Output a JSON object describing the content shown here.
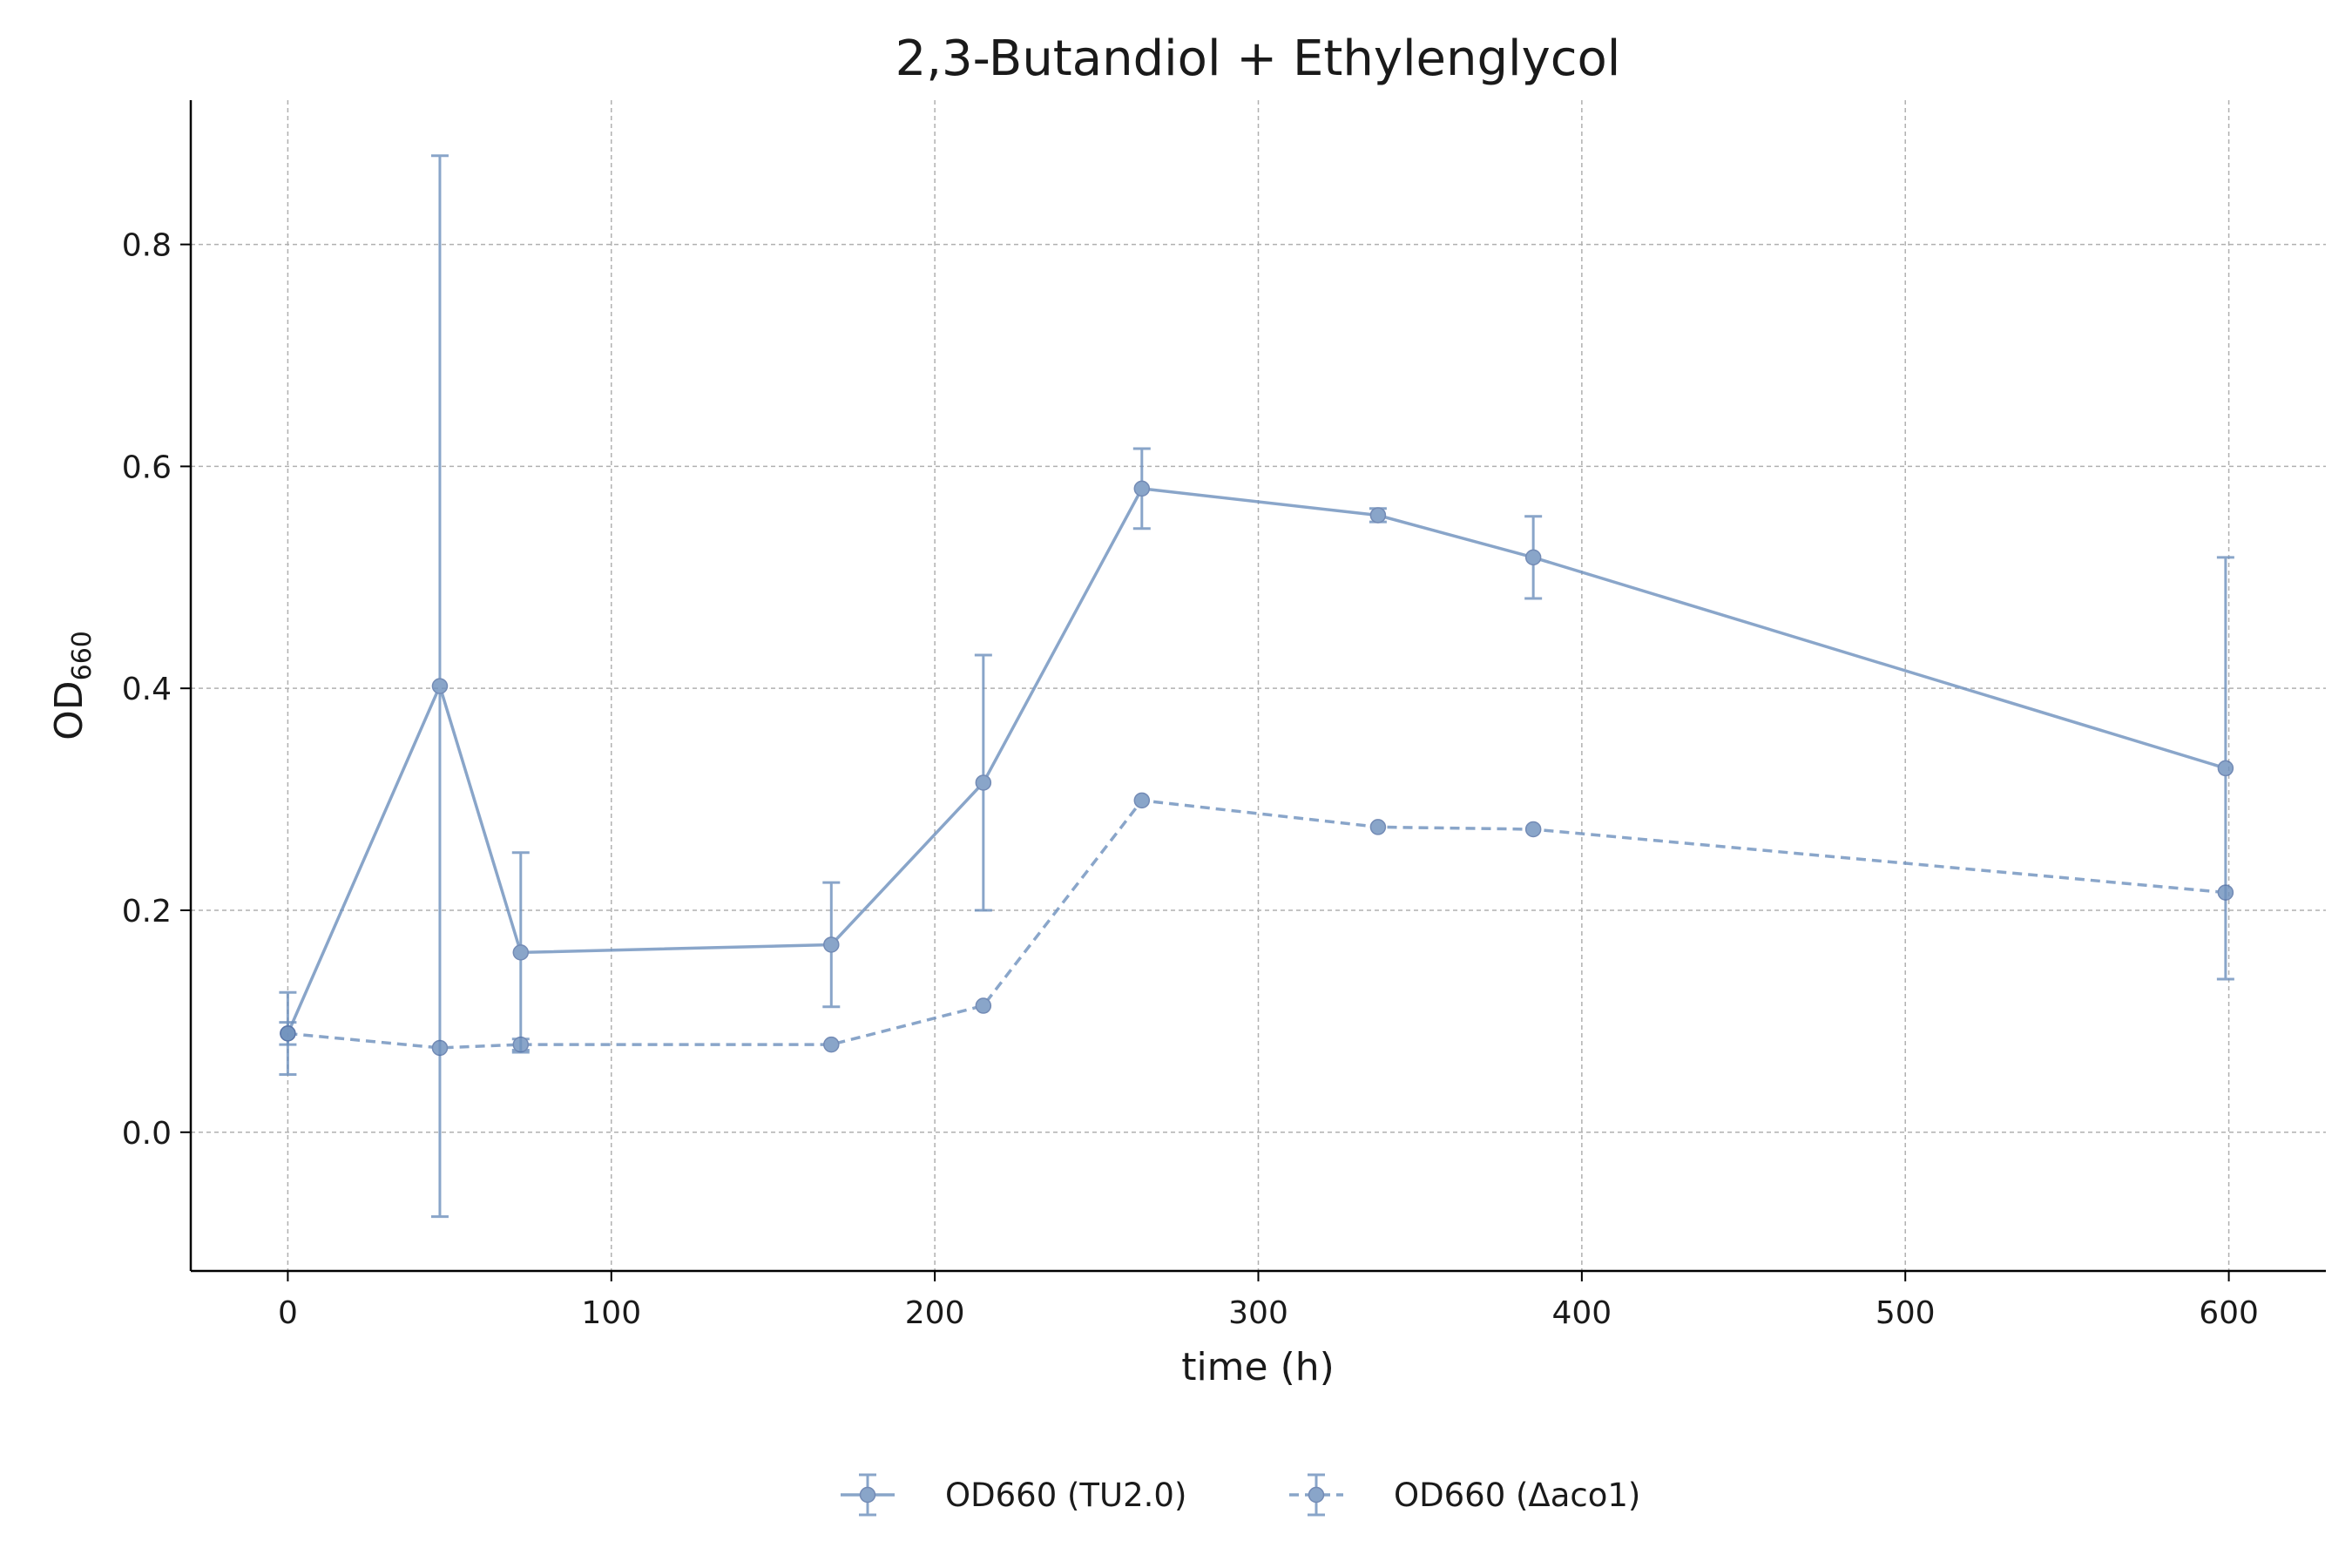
{
  "chart_data": {
    "type": "line",
    "title": "2,3-Butandiol + Ethylenglycol",
    "xlabel": "time (h)",
    "ylabel": {
      "main": "OD",
      "subscript": "660"
    },
    "xlim": [
      -30,
      630
    ],
    "ylim": [
      -0.125,
      0.93
    ],
    "xticks": [
      0,
      100,
      200,
      300,
      400,
      500,
      600
    ],
    "yticks": [
      0.0,
      0.2,
      0.4,
      0.6,
      0.8
    ],
    "ytick_labels": [
      "0.0",
      "0.2",
      "0.4",
      "0.6",
      "0.8"
    ],
    "grid": true,
    "legend_position": "bottom-center",
    "series": [
      {
        "name": "OD660 (TU2.0)",
        "color": "#7092be",
        "linestyle": "solid",
        "x": [
          0,
          47,
          72,
          168,
          215,
          264,
          337,
          385,
          599
        ],
        "y": [
          0.089,
          0.402,
          0.162,
          0.169,
          0.315,
          0.58,
          0.556,
          0.518,
          0.328
        ],
        "yerr": [
          0.037,
          0.478,
          0.09,
          0.056,
          0.115,
          0.036,
          0.006,
          0.037,
          0.19
        ]
      },
      {
        "name": "OD660 (Δaco1)",
        "color": "#7092be",
        "linestyle": "dashed",
        "x": [
          0,
          47,
          72,
          168,
          215,
          264,
          337,
          385,
          599
        ],
        "y": [
          0.089,
          0.076,
          0.079,
          0.079,
          0.114,
          0.299,
          0.275,
          0.273,
          0.216
        ],
        "yerr": [
          0.01,
          0.0,
          0.005,
          0.0,
          0.0,
          0.0,
          0.0,
          0.0,
          0.0
        ]
      }
    ]
  }
}
